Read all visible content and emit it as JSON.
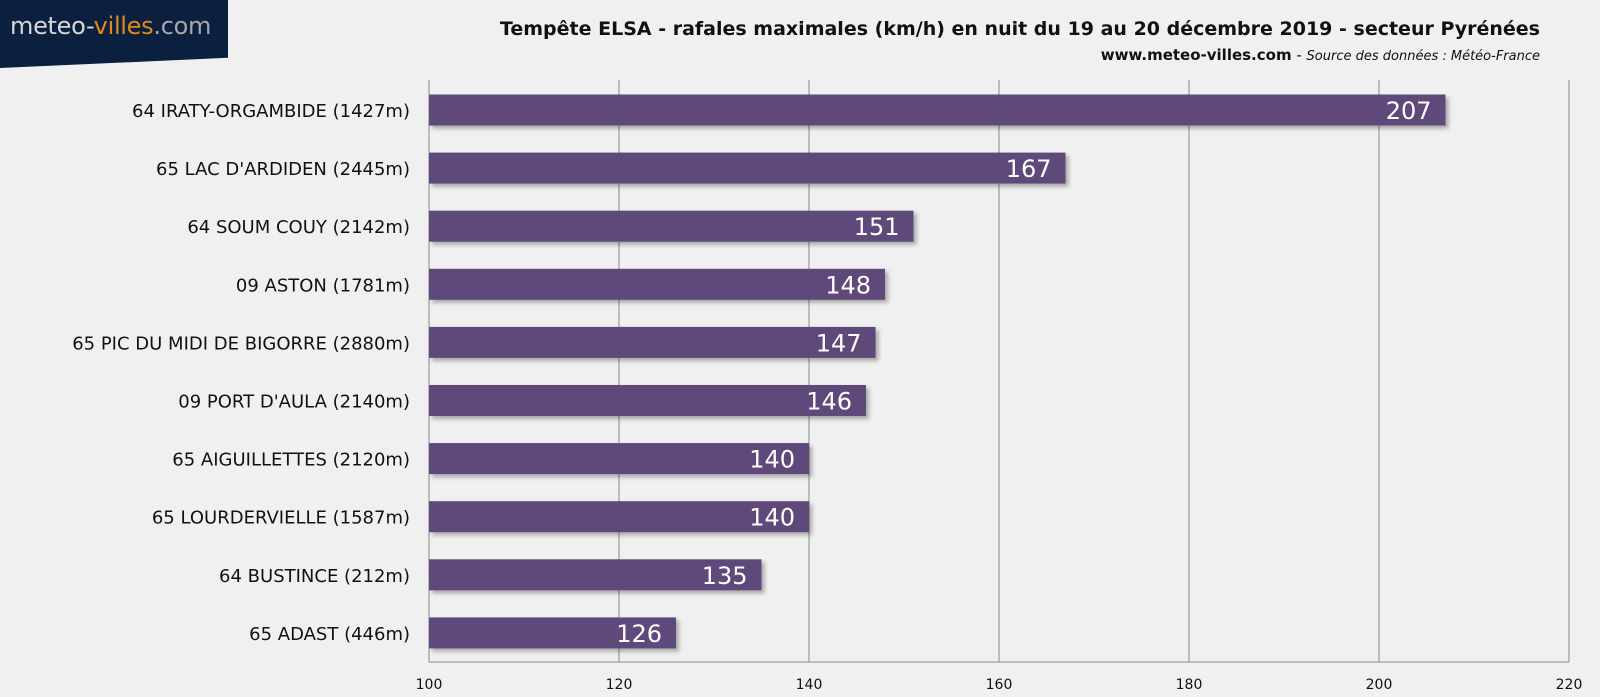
{
  "logo": {
    "part1": "meteo-",
    "part2": "villes",
    "part3": ".com"
  },
  "header": {
    "title": "Tempête ELSA - rafales maximales (km/h) en nuit du 19 au 20 décembre 2019 - secteur Pyrénées",
    "site": "www.meteo-villes.com",
    "separator": " - ",
    "source": "Source des données : Météo-France"
  },
  "colors": {
    "bar": "#5f4a7a",
    "grid": "#8a8a8a",
    "background": "#f0f0f0",
    "logo_bg": "#0b1f3f",
    "logo_accent": "#e08a1a"
  },
  "chart_data": {
    "type": "bar",
    "orientation": "horizontal",
    "title": "Tempête ELSA - rafales maximales (km/h) en nuit du 19 au 20 décembre 2019 - secteur Pyrénées",
    "categories": [
      "64 IRATY-ORGAMBIDE (1427m)",
      "65 LAC D'ARDIDEN (2445m)",
      "64 SOUM COUY (2142m)",
      "09 ASTON (1781m)",
      "65 PIC DU MIDI DE BIGORRE (2880m)",
      "09 PORT D'AULA (2140m)",
      "65 AIGUILLETTES (2120m)",
      "65 LOURDERVIELLE (1587m)",
      "64 BUSTINCE (212m)",
      "65 ADAST (446m)"
    ],
    "values": [
      207,
      167,
      151,
      148,
      147,
      146,
      140,
      140,
      135,
      126
    ],
    "data_labels": [
      "207",
      "167",
      "151",
      "148",
      "147",
      "146",
      "140",
      "140",
      "135",
      "126"
    ],
    "xlim": [
      100,
      220
    ],
    "xticks": [
      "100",
      "120",
      "140",
      "160",
      "180",
      "200",
      "220"
    ],
    "grid": true,
    "xlabel": "",
    "ylabel": ""
  }
}
